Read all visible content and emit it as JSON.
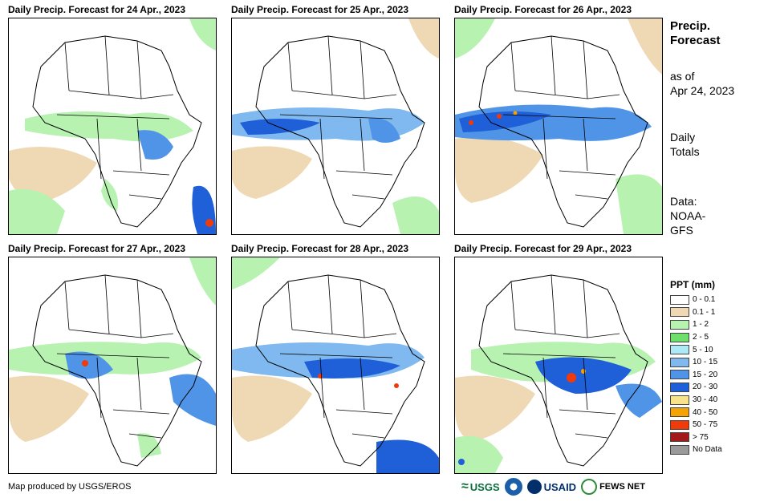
{
  "panels": [
    {
      "title": "Daily Precip. Forecast for 24 Apr., 2023"
    },
    {
      "title": "Daily Precip. Forecast for 25 Apr., 2023"
    },
    {
      "title": "Daily Precip. Forecast for 26 Apr., 2023"
    },
    {
      "title": "Daily Precip. Forecast for 27 Apr., 2023"
    },
    {
      "title": "Daily Precip. Forecast for 28 Apr., 2023"
    },
    {
      "title": "Daily Precip. Forecast for 29 Apr., 2023"
    }
  ],
  "sidebar": {
    "title_line1": "Precip.",
    "title_line2": "Forecast",
    "asof_line1": "as of",
    "asof_line2": "Apr 24, 2023",
    "totals_line1": "Daily",
    "totals_line2": "Totals",
    "data_line1": "Data:",
    "data_line2": "NOAA-",
    "data_line3": "GFS"
  },
  "legend": {
    "title": "PPT (mm)",
    "items": [
      {
        "label": "0 - 0.1",
        "color": "#ffffff"
      },
      {
        "label": "0.1 - 1",
        "color": "#efd9b4"
      },
      {
        "label": "1 - 2",
        "color": "#b7f2b1"
      },
      {
        "label": "2 - 5",
        "color": "#6fdf6b"
      },
      {
        "label": "5 - 10",
        "color": "#aeeaf6"
      },
      {
        "label": "10 - 15",
        "color": "#7fb9ef"
      },
      {
        "label": "15 - 20",
        "color": "#4f94e6"
      },
      {
        "label": "20 - 30",
        "color": "#1f5fd8"
      },
      {
        "label": "30 - 40",
        "color": "#f8e38a"
      },
      {
        "label": "40 - 50",
        "color": "#f5a300"
      },
      {
        "label": "50 - 75",
        "color": "#f03a0a"
      },
      {
        "label": "> 75",
        "color": "#a31a1a"
      },
      {
        "label": "No Data",
        "color": "#9a9a9a"
      }
    ]
  },
  "credit": "Map produced by USGS/EROS",
  "logos": {
    "usgs": "USGS",
    "usaid": "USAID",
    "fewsnet": "FEWS NET"
  }
}
